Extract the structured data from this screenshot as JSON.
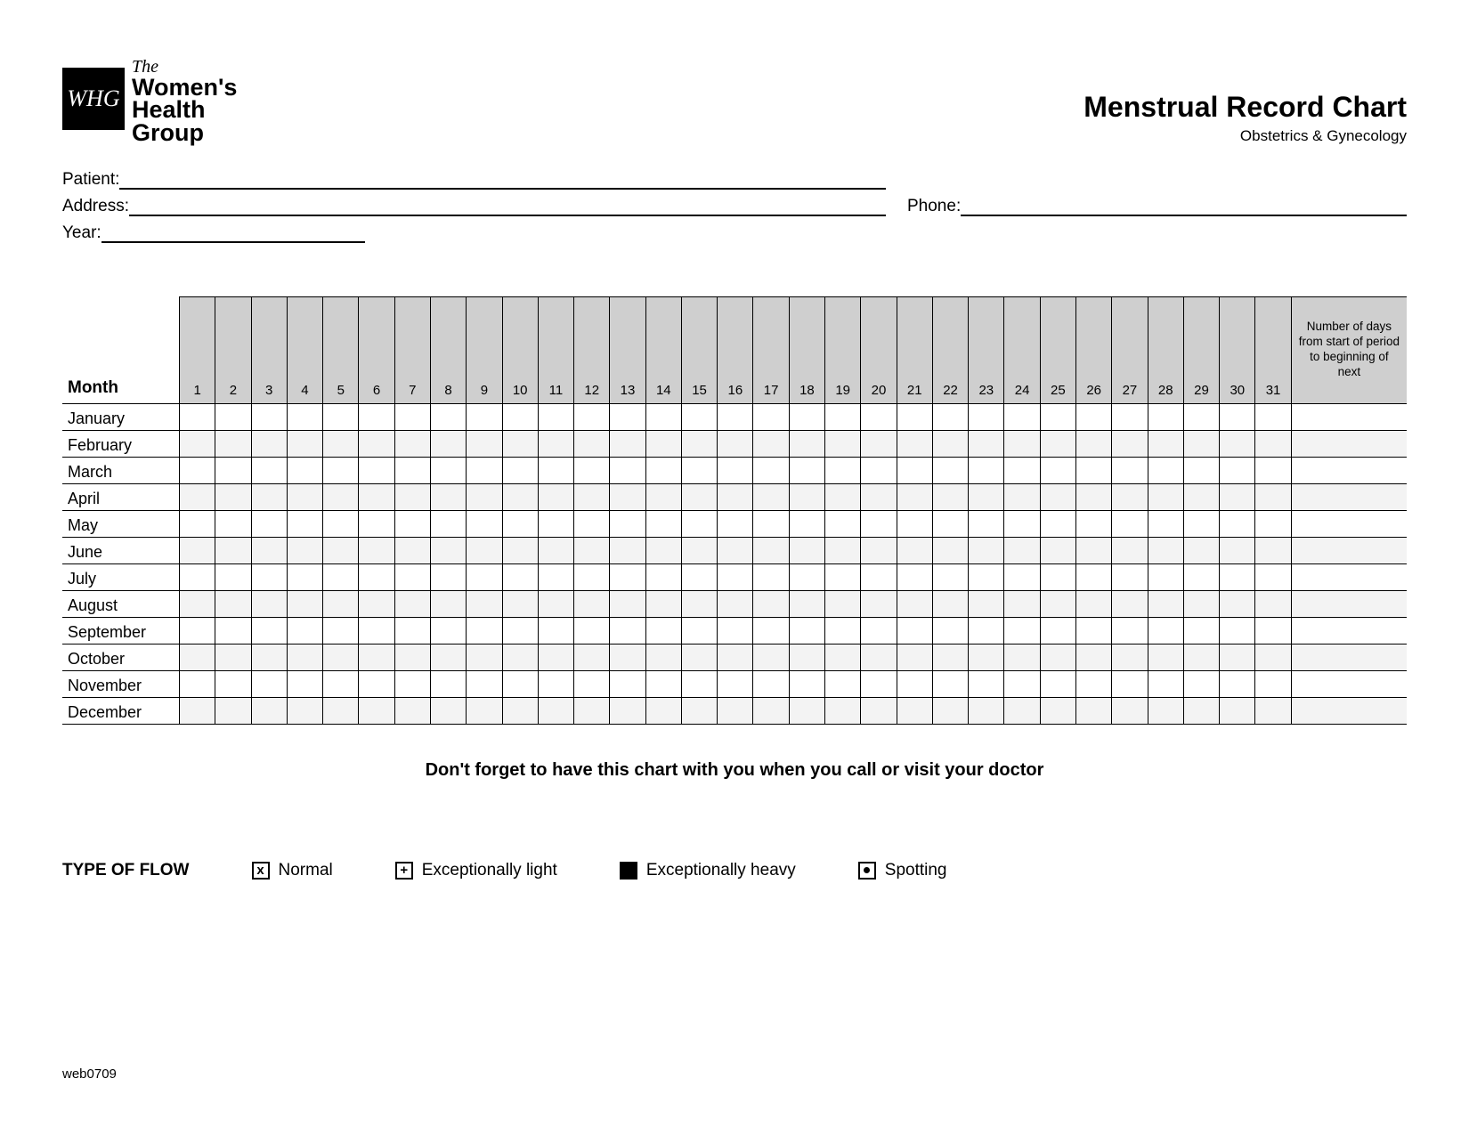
{
  "logo": {
    "monogram": "WHG",
    "the": "The",
    "line1": "Women's",
    "line2": "Health",
    "line3": "Group"
  },
  "title": "Menstrual Record Chart",
  "subtitle": "Obstetrics & Gynecology",
  "fields": {
    "patient_label": "Patient:",
    "address_label": "Address:",
    "phone_label": "Phone:",
    "year_label": "Year:"
  },
  "chart": {
    "month_header": "Month",
    "days": [
      "1",
      "2",
      "3",
      "4",
      "5",
      "6",
      "7",
      "8",
      "9",
      "10",
      "11",
      "12",
      "13",
      "14",
      "15",
      "16",
      "17",
      "18",
      "19",
      "20",
      "21",
      "22",
      "23",
      "24",
      "25",
      "26",
      "27",
      "28",
      "29",
      "30",
      "31"
    ],
    "note_header": "Number of days from start of period to beginning of next",
    "months": [
      "January",
      "February",
      "March",
      "April",
      "May",
      "June",
      "July",
      "August",
      "September",
      "October",
      "November",
      "December"
    ],
    "header_bg": "#cfcfcf",
    "alt_row_bg": "#f3f3f3",
    "border_color": "#000000"
  },
  "reminder": "Don't forget to have this chart with you when you call or visit your doctor",
  "legend": {
    "title": "TYPE OF FLOW",
    "normal": "Normal",
    "light": "Exceptionally light",
    "heavy": "Exceptionally heavy",
    "spotting": "Spotting"
  },
  "footer_code": "web0709"
}
